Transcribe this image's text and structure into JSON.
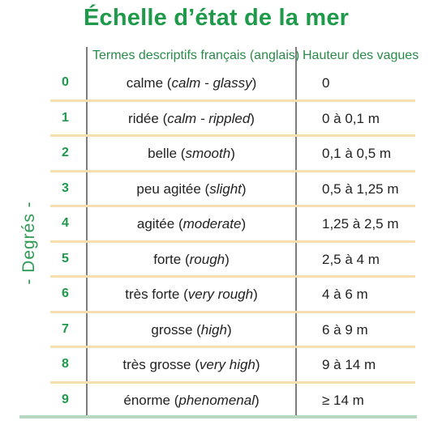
{
  "title": "Échelle d’état de la mer",
  "side_label": "- Degrés -",
  "headers": {
    "terms": "Termes descriptifs français (anglais)",
    "height": "Hauteur des vagues"
  },
  "rows": [
    {
      "degree": "0",
      "fr": "calme",
      "en": "calm - glassy",
      "height": "0"
    },
    {
      "degree": "1",
      "fr": "ridée",
      "en": "calm - rippled",
      "height": "0 à 0,1 m"
    },
    {
      "degree": "2",
      "fr": "belle",
      "en": "smooth",
      "height": "0,1 à 0,5 m"
    },
    {
      "degree": "3",
      "fr": "peu agitée",
      "en": "slight",
      "height": "0,5 à 1,25 m"
    },
    {
      "degree": "4",
      "fr": "agitée",
      "en": "moderate",
      "height": "1,25 à 2,5 m"
    },
    {
      "degree": "5",
      "fr": "forte",
      "en": "rough",
      "height": "2,5 à 4 m"
    },
    {
      "degree": "6",
      "fr": "très forte",
      "en": "very rough",
      "height": "4 à 6 m"
    },
    {
      "degree": "7",
      "fr": "grosse",
      "en": "high",
      "height": "6 à 9 m"
    },
    {
      "degree": "8",
      "fr": "très grosse",
      "en": "very high",
      "height": "9 à 14 m"
    },
    {
      "degree": "9",
      "fr": "énorme",
      "en": "phenomenal",
      "height": "≥ 14 m"
    }
  ],
  "colors": {
    "title": "#1e9a4a",
    "separator": "#f5dfb0",
    "bottom_rule": "#b9d8c1"
  }
}
